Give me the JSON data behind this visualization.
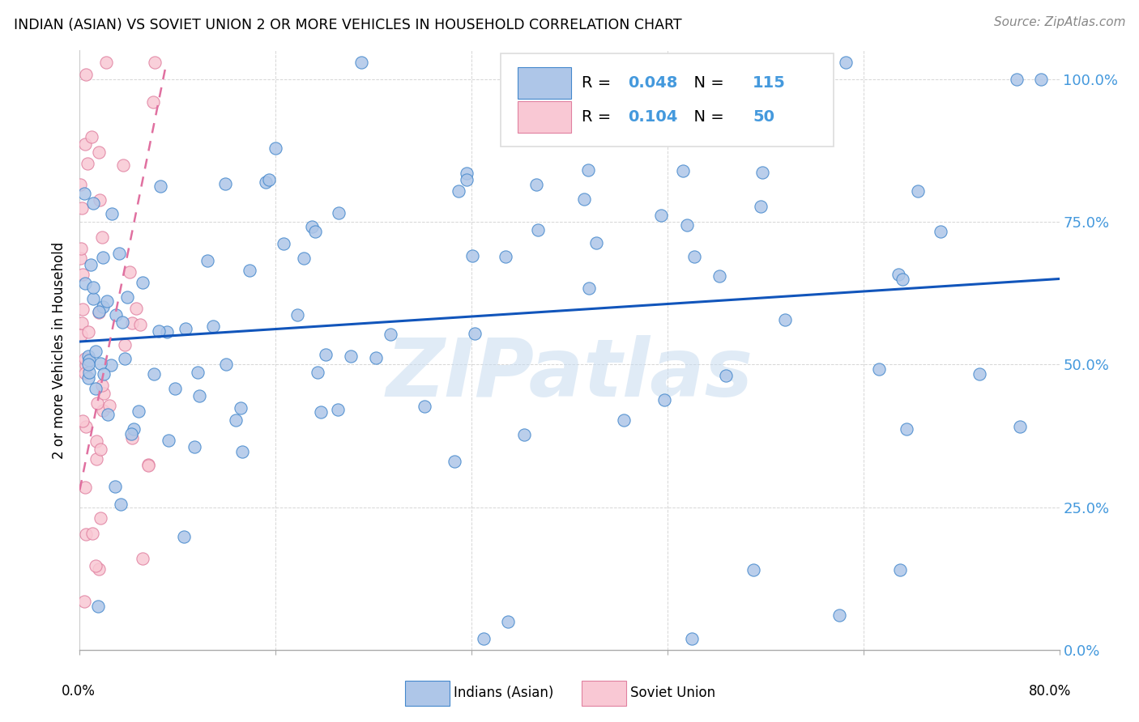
{
  "title": "INDIAN (ASIAN) VS SOVIET UNION 2 OR MORE VEHICLES IN HOUSEHOLD CORRELATION CHART",
  "source": "Source: ZipAtlas.com",
  "ylabel": "2 or more Vehicles in Household",
  "xlim": [
    0,
    80
  ],
  "ylim": [
    0,
    105
  ],
  "blue_R": "0.048",
  "blue_N": "115",
  "pink_R": "0.104",
  "pink_N": "50",
  "watermark": "ZIPatlas",
  "blue_color": "#aec6e8",
  "blue_edge_color": "#4488cc",
  "blue_line_color": "#1155bb",
  "pink_color": "#f9c8d4",
  "pink_edge_color": "#e080a0",
  "pink_line_color": "#e070a0",
  "grid_color": "#cccccc",
  "right_tick_color": "#4499dd",
  "legend_box_color": "#dddddd",
  "source_color": "#888888",
  "watermark_color": "#c8dcf0"
}
